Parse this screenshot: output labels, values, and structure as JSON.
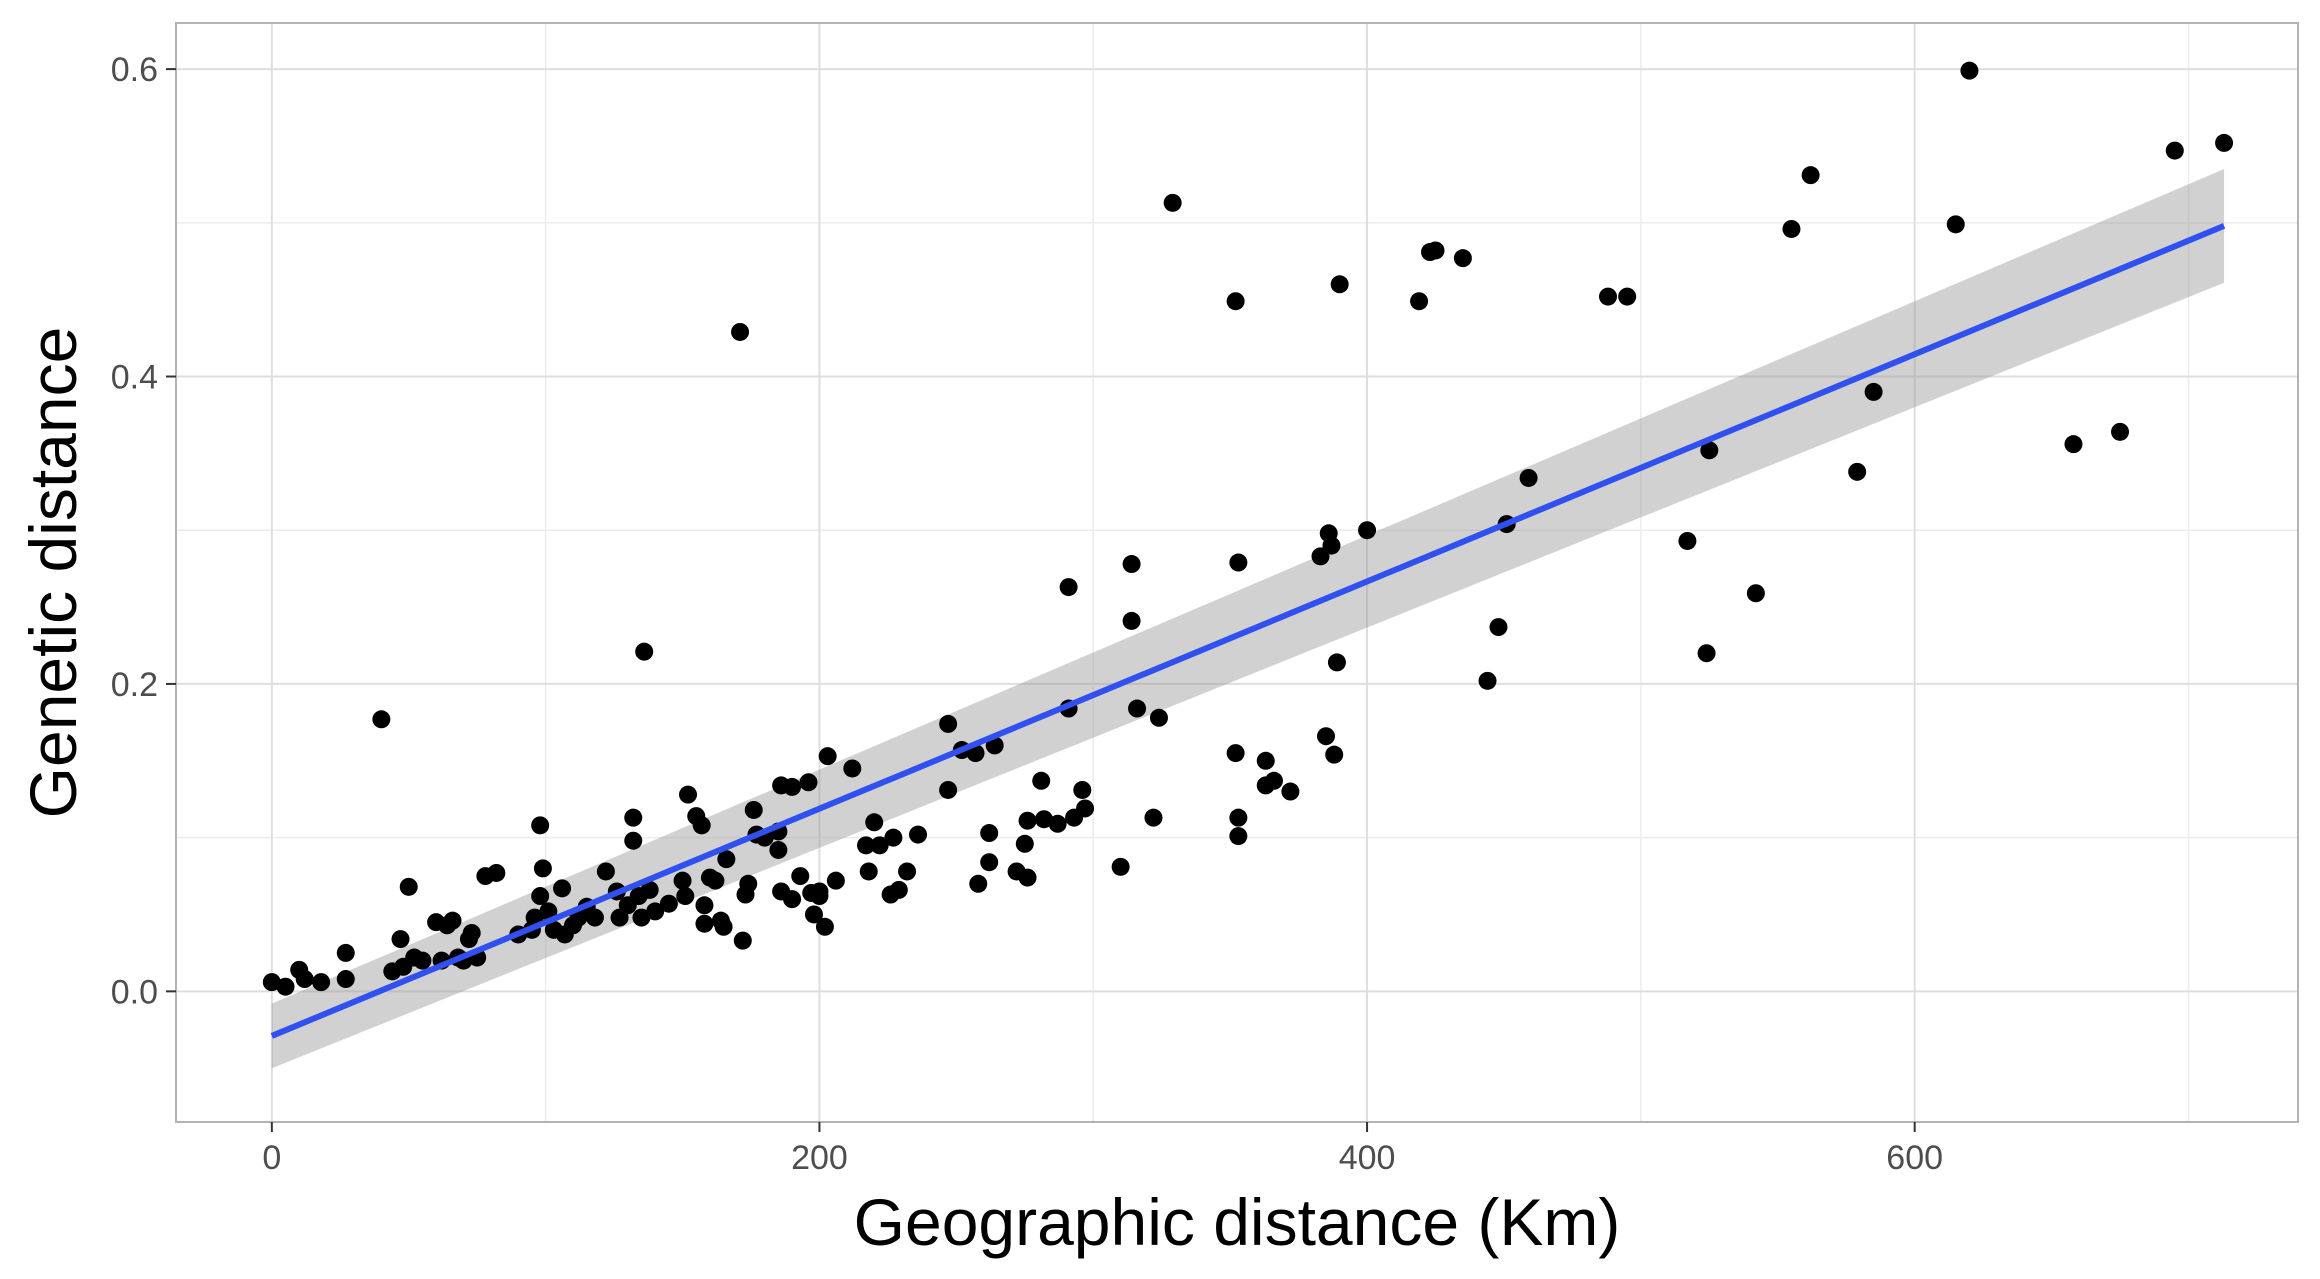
{
  "chart_data": {
    "type": "scatter",
    "title": "",
    "xlabel": "Geographic distance (Km)",
    "ylabel": "Genetic distance",
    "xlim": [
      -35,
      740
    ],
    "ylim": [
      -0.085,
      0.63
    ],
    "x_ticks": [
      0,
      200,
      400,
      600
    ],
    "x_tick_labels": [
      "0",
      "200",
      "400",
      "600"
    ],
    "y_ticks": [
      0.0,
      0.2,
      0.4,
      0.6
    ],
    "y_tick_labels": [
      "0.0",
      "0.2",
      "0.4",
      "0.6"
    ],
    "grid": true,
    "legend": "none",
    "colors": {
      "points": "#000000",
      "fit_line": "#3050f0",
      "ci_band": "#999999",
      "panel_border": "#b3b3b3",
      "grid": "#dedede"
    },
    "fit": {
      "method": "linear",
      "x_range": [
        0,
        713
      ],
      "y_at_start": -0.029,
      "y_at_end": 0.498,
      "ci_at_start": [
        -0.05,
        -0.008
      ],
      "ci_at_end": [
        0.461,
        0.535
      ]
    },
    "points": [
      [
        0,
        0.006
      ],
      [
        5,
        0.003
      ],
      [
        10,
        0.014
      ],
      [
        12,
        0.008
      ],
      [
        18,
        0.006
      ],
      [
        27,
        0.025
      ],
      [
        27,
        0.008
      ],
      [
        40,
        0.177
      ],
      [
        44,
        0.013
      ],
      [
        47,
        0.034
      ],
      [
        48,
        0.016
      ],
      [
        50,
        0.068
      ],
      [
        52,
        0.022
      ],
      [
        55,
        0.02
      ],
      [
        60,
        0.045
      ],
      [
        62,
        0.02
      ],
      [
        64,
        0.043
      ],
      [
        66,
        0.046
      ],
      [
        68,
        0.022
      ],
      [
        70,
        0.02
      ],
      [
        72,
        0.034
      ],
      [
        73,
        0.038
      ],
      [
        75,
        0.022
      ],
      [
        78,
        0.075
      ],
      [
        82,
        0.077
      ],
      [
        90,
        0.037
      ],
      [
        95,
        0.04
      ],
      [
        96,
        0.048
      ],
      [
        98,
        0.108
      ],
      [
        98,
        0.062
      ],
      [
        99,
        0.08
      ],
      [
        101,
        0.052
      ],
      [
        103,
        0.04
      ],
      [
        106,
        0.067
      ],
      [
        107,
        0.037
      ],
      [
        110,
        0.043
      ],
      [
        112,
        0.048
      ],
      [
        115,
        0.055
      ],
      [
        118,
        0.048
      ],
      [
        122,
        0.078
      ],
      [
        126,
        0.065
      ],
      [
        127,
        0.048
      ],
      [
        130,
        0.056
      ],
      [
        132,
        0.098
      ],
      [
        132,
        0.113
      ],
      [
        134,
        0.062
      ],
      [
        135,
        0.048
      ],
      [
        136,
        0.221
      ],
      [
        138,
        0.066
      ],
      [
        140,
        0.052
      ],
      [
        145,
        0.057
      ],
      [
        150,
        0.072
      ],
      [
        151,
        0.062
      ],
      [
        152,
        0.128
      ],
      [
        155,
        0.114
      ],
      [
        157,
        0.108
      ],
      [
        158,
        0.056
      ],
      [
        158,
        0.044
      ],
      [
        160,
        0.074
      ],
      [
        162,
        0.072
      ],
      [
        164,
        0.046
      ],
      [
        165,
        0.042
      ],
      [
        166,
        0.086
      ],
      [
        171,
        0.429
      ],
      [
        172,
        0.033
      ],
      [
        173,
        0.063
      ],
      [
        174,
        0.07
      ],
      [
        176,
        0.118
      ],
      [
        177,
        0.102
      ],
      [
        180,
        0.1
      ],
      [
        185,
        0.104
      ],
      [
        185,
        0.092
      ],
      [
        186,
        0.134
      ],
      [
        186,
        0.065
      ],
      [
        190,
        0.133
      ],
      [
        190,
        0.06
      ],
      [
        193,
        0.075
      ],
      [
        196,
        0.136
      ],
      [
        197,
        0.064
      ],
      [
        198,
        0.05
      ],
      [
        200,
        0.065
      ],
      [
        200,
        0.062
      ],
      [
        202,
        0.042
      ],
      [
        203,
        0.153
      ],
      [
        206,
        0.072
      ],
      [
        212,
        0.145
      ],
      [
        217,
        0.095
      ],
      [
        218,
        0.078
      ],
      [
        220,
        0.11
      ],
      [
        222,
        0.095
      ],
      [
        226,
        0.063
      ],
      [
        227,
        0.1
      ],
      [
        229,
        0.066
      ],
      [
        232,
        0.078
      ],
      [
        236,
        0.102
      ],
      [
        247,
        0.174
      ],
      [
        247,
        0.131
      ],
      [
        252,
        0.157
      ],
      [
        257,
        0.155
      ],
      [
        258,
        0.07
      ],
      [
        262,
        0.103
      ],
      [
        262,
        0.084
      ],
      [
        264,
        0.16
      ],
      [
        272,
        0.078
      ],
      [
        275,
        0.096
      ],
      [
        276,
        0.111
      ],
      [
        276,
        0.074
      ],
      [
        281,
        0.137
      ],
      [
        282,
        0.112
      ],
      [
        287,
        0.109
      ],
      [
        291,
        0.184
      ],
      [
        291,
        0.263
      ],
      [
        293,
        0.113
      ],
      [
        296,
        0.131
      ],
      [
        297,
        0.119
      ],
      [
        310,
        0.081
      ],
      [
        314,
        0.278
      ],
      [
        314,
        0.241
      ],
      [
        316,
        0.184
      ],
      [
        322,
        0.113
      ],
      [
        324,
        0.178
      ],
      [
        329,
        0.513
      ],
      [
        352,
        0.449
      ],
      [
        352,
        0.155
      ],
      [
        353,
        0.101
      ],
      [
        353,
        0.113
      ],
      [
        353,
        0.279
      ],
      [
        363,
        0.15
      ],
      [
        363,
        0.134
      ],
      [
        366,
        0.137
      ],
      [
        372,
        0.13
      ],
      [
        383,
        0.283
      ],
      [
        385,
        0.166
      ],
      [
        386,
        0.298
      ],
      [
        387,
        0.29
      ],
      [
        388,
        0.154
      ],
      [
        389,
        0.214
      ],
      [
        390,
        0.46
      ],
      [
        400,
        0.3
      ],
      [
        419,
        0.449
      ],
      [
        423,
        0.481
      ],
      [
        425,
        0.482
      ],
      [
        435,
        0.477
      ],
      [
        444,
        0.202
      ],
      [
        448,
        0.237
      ],
      [
        451,
        0.304
      ],
      [
        459,
        0.334
      ],
      [
        488,
        0.452
      ],
      [
        495,
        0.452
      ],
      [
        517,
        0.293
      ],
      [
        524,
        0.22
      ],
      [
        525,
        0.352
      ],
      [
        542,
        0.259
      ],
      [
        555,
        0.496
      ],
      [
        562,
        0.531
      ],
      [
        579,
        0.338
      ],
      [
        585,
        0.39
      ],
      [
        615,
        0.499
      ],
      [
        620,
        0.599
      ],
      [
        658,
        0.356
      ],
      [
        675,
        0.364
      ],
      [
        695,
        0.547
      ],
      [
        713,
        0.552
      ]
    ]
  }
}
